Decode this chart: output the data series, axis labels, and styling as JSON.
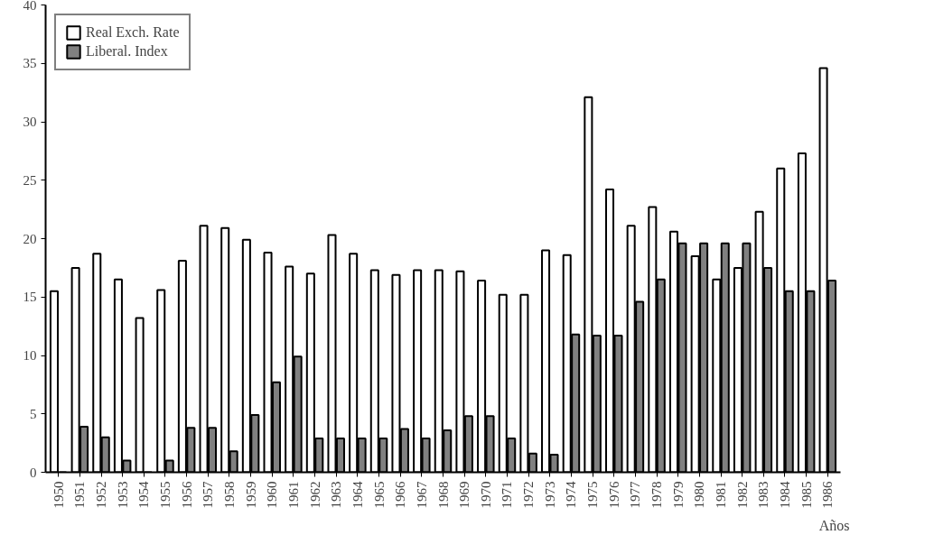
{
  "chart_data": {
    "type": "bar",
    "xlabel": "Años",
    "categories": [
      "1950",
      "1951",
      "1952",
      "1953",
      "1954",
      "1955",
      "1956",
      "1957",
      "1958",
      "1959",
      "1960",
      "1961",
      "1962",
      "1963",
      "1964",
      "1965",
      "1966",
      "1967",
      "1968",
      "1969",
      "1970",
      "1971",
      "1972",
      "1973",
      "1974",
      "1975",
      "1976",
      "1977",
      "1978",
      "1979",
      "1980",
      "1981",
      "1982",
      "1983",
      "1984",
      "1985",
      "1986"
    ],
    "series": [
      {
        "name": "Real Exch. Rate",
        "color": "#ffffff",
        "values": [
          15.5,
          17.5,
          18.7,
          16.5,
          13.2,
          15.6,
          18.1,
          21.1,
          20.9,
          19.9,
          18.8,
          17.6,
          17.0,
          20.3,
          18.7,
          17.3,
          16.9,
          17.3,
          17.3,
          17.2,
          16.4,
          15.2,
          15.2,
          19.0,
          18.6,
          32.1,
          24.2,
          21.1,
          22.7,
          20.6,
          18.5,
          16.5,
          17.5,
          22.3,
          26.0,
          27.3,
          34.6
        ]
      },
      {
        "name": "Liberal. Index",
        "color": "#808080",
        "values": [
          0,
          3.9,
          3.0,
          1.0,
          0,
          1.0,
          3.8,
          3.8,
          1.8,
          4.9,
          7.7,
          9.9,
          2.9,
          2.9,
          2.9,
          2.9,
          3.7,
          2.9,
          3.6,
          4.8,
          4.8,
          2.9,
          1.6,
          1.5,
          11.8,
          11.7,
          11.7,
          14.6,
          16.5,
          19.6,
          19.6,
          19.6,
          19.6,
          17.5,
          15.5,
          15.5,
          16.4
        ]
      }
    ],
    "ylim": [
      0,
      40
    ],
    "yticks": [
      0,
      5,
      10,
      15,
      20,
      25,
      30,
      35,
      40
    ],
    "grid": false,
    "legend": "top left"
  }
}
